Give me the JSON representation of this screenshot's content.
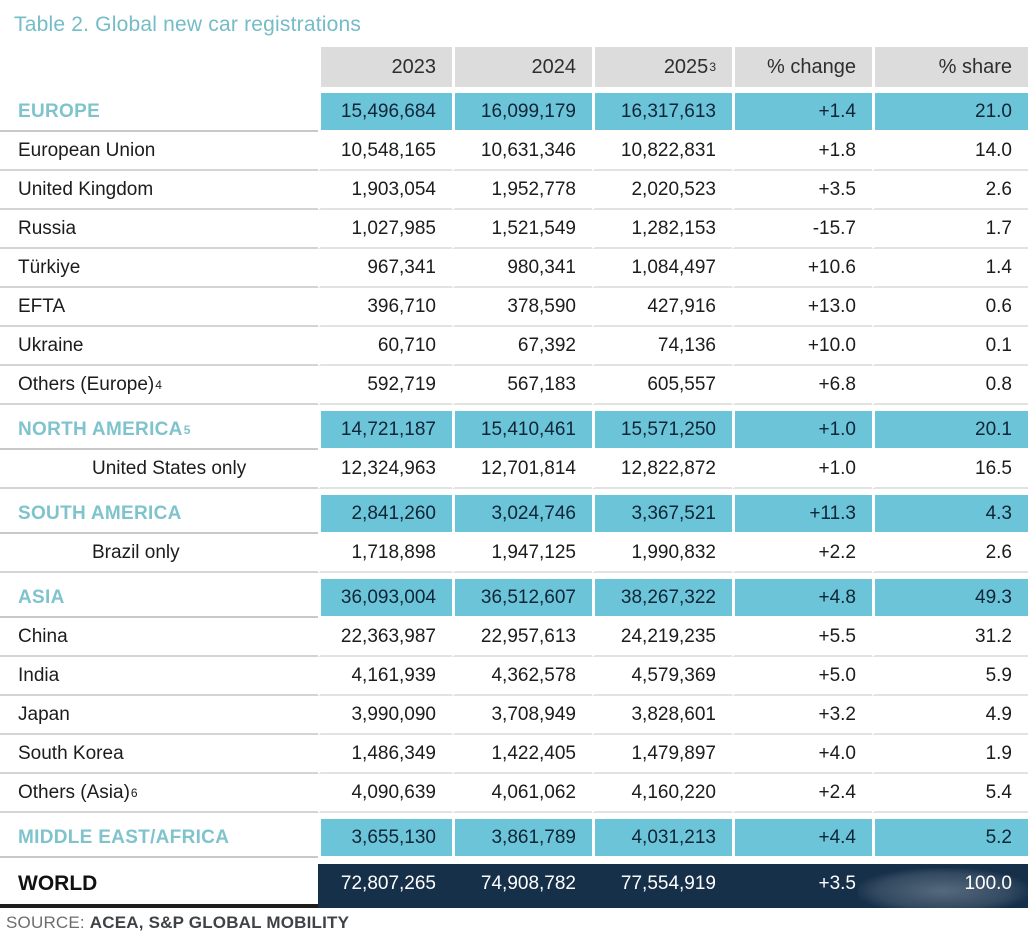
{
  "page": {
    "title": "Table 2. Global new car registrations",
    "source_prefix": "SOURCE: ",
    "source_text": "ACEA, S&P GLOBAL MOBILITY"
  },
  "colors": {
    "accent_teal": "#74bcc7",
    "section_row_highlight": "#6cc4d8",
    "header_bg": "#dcdcdc",
    "world_row_bg": "#16304a",
    "separator": "#d4d4d4"
  },
  "table": {
    "columns": [
      "2023",
      "2024",
      "2025",
      "% change",
      "% share"
    ],
    "col_2025_sup": "3",
    "rows": [
      {
        "label": "EUROPE",
        "sup": "",
        "type": "section",
        "values": [
          "15,496,684",
          "16,099,179",
          "16,317,613",
          "+1.4",
          "21.0"
        ]
      },
      {
        "label": "European Union",
        "sup": "",
        "type": "country",
        "values": [
          "10,548,165",
          "10,631,346",
          "10,822,831",
          "+1.8",
          "14.0"
        ]
      },
      {
        "label": "United Kingdom",
        "sup": "",
        "type": "country",
        "values": [
          "1,903,054",
          "1,952,778",
          "2,020,523",
          "+3.5",
          "2.6"
        ]
      },
      {
        "label": "Russia",
        "sup": "",
        "type": "country",
        "values": [
          "1,027,985",
          "1,521,549",
          "1,282,153",
          "-15.7",
          "1.7"
        ]
      },
      {
        "label": "Türkiye",
        "sup": "",
        "type": "country",
        "values": [
          "967,341",
          "980,341",
          "1,084,497",
          "+10.6",
          "1.4"
        ]
      },
      {
        "label": "EFTA",
        "sup": "",
        "type": "country",
        "values": [
          "396,710",
          "378,590",
          "427,916",
          "+13.0",
          "0.6"
        ]
      },
      {
        "label": "Ukraine",
        "sup": "",
        "type": "country",
        "values": [
          "60,710",
          "67,392",
          "74,136",
          "+10.0",
          "0.1"
        ]
      },
      {
        "label": "Others (Europe)",
        "sup": "4",
        "type": "country",
        "values": [
          "592,719",
          "567,183",
          "605,557",
          "+6.8",
          "0.8"
        ]
      },
      {
        "label": "NORTH AMERICA",
        "sup": "5",
        "type": "section",
        "values": [
          "14,721,187",
          "15,410,461",
          "15,571,250",
          "+1.0",
          "20.1"
        ]
      },
      {
        "label": "United States only",
        "sup": "",
        "type": "indent",
        "values": [
          "12,324,963",
          "12,701,814",
          "12,822,872",
          "+1.0",
          "16.5"
        ]
      },
      {
        "label": "SOUTH AMERICA",
        "sup": "",
        "type": "section",
        "values": [
          "2,841,260",
          "3,024,746",
          "3,367,521",
          "+11.3",
          "4.3"
        ]
      },
      {
        "label": "Brazil only",
        "sup": "",
        "type": "indent",
        "values": [
          "1,718,898",
          "1,947,125",
          "1,990,832",
          "+2.2",
          "2.6"
        ]
      },
      {
        "label": "ASIA",
        "sup": "",
        "type": "section",
        "values": [
          "36,093,004",
          "36,512,607",
          "38,267,322",
          "+4.8",
          "49.3"
        ]
      },
      {
        "label": "China",
        "sup": "",
        "type": "country",
        "values": [
          "22,363,987",
          "22,957,613",
          "24,219,235",
          "+5.5",
          "31.2"
        ]
      },
      {
        "label": "India",
        "sup": "",
        "type": "country",
        "values": [
          "4,161,939",
          "4,362,578",
          "4,579,369",
          "+5.0",
          "5.9"
        ]
      },
      {
        "label": "Japan",
        "sup": "",
        "type": "country",
        "values": [
          "3,990,090",
          "3,708,949",
          "3,828,601",
          "+3.2",
          "4.9"
        ]
      },
      {
        "label": "South Korea",
        "sup": "",
        "type": "country",
        "values": [
          "1,486,349",
          "1,422,405",
          "1,479,897",
          "+4.0",
          "1.9"
        ]
      },
      {
        "label": "Others (Asia)",
        "sup": "6",
        "type": "country",
        "values": [
          "4,090,639",
          "4,061,062",
          "4,160,220",
          "+2.4",
          "5.4"
        ]
      },
      {
        "label": "MIDDLE EAST/AFRICA",
        "sup": "",
        "type": "section",
        "values": [
          "3,655,130",
          "3,861,789",
          "4,031,213",
          "+4.4",
          "5.2"
        ]
      },
      {
        "label": "WORLD",
        "sup": "",
        "type": "world",
        "values": [
          "72,807,265",
          "74,908,782",
          "77,554,919",
          "+3.5",
          "100.0"
        ]
      }
    ]
  }
}
